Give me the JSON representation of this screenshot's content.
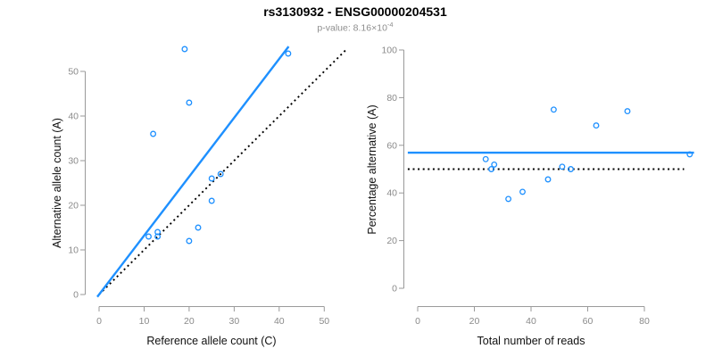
{
  "header": {
    "title": "rs3130932 - ENSG00000204531",
    "subtitle_prefix": "p-value: 8.16×10",
    "subtitle_exponent": "-4"
  },
  "colors": {
    "accent_blue": "#1E90FF",
    "line_black": "#000000",
    "axis_gray": "#9a9a9a",
    "tick_label_gray": "#8a8a8a"
  },
  "chart_data": [
    {
      "type": "scatter",
      "name": "allele-count-scatter",
      "xlabel": "Reference allele count (C)",
      "ylabel": "Alternative allele count (A)",
      "xlim": [
        0,
        50
      ],
      "ylim": [
        0,
        50
      ],
      "xticks": [
        0,
        10,
        20,
        30,
        40,
        50
      ],
      "yticks": [
        0,
        10,
        20,
        30,
        40,
        50
      ],
      "grid": false,
      "points": [
        [
          11,
          13
        ],
        [
          12,
          36
        ],
        [
          13,
          13
        ],
        [
          13,
          14
        ],
        [
          19,
          55
        ],
        [
          20,
          12
        ],
        [
          20,
          43
        ],
        [
          22,
          15
        ],
        [
          25,
          21
        ],
        [
          25,
          26
        ],
        [
          27,
          27
        ],
        [
          42,
          54
        ]
      ],
      "lines": [
        {
          "name": "identity-line",
          "kind": "abline",
          "slope": 1,
          "intercept": 0,
          "style": "dotted",
          "color": "#000000",
          "x_range": [
            0,
            55
          ]
        },
        {
          "name": "fit-line",
          "kind": "abline",
          "slope": 1.32,
          "intercept": 0,
          "style": "solid",
          "color": "#1E90FF",
          "x_range": [
            -0.4,
            42.1
          ]
        }
      ]
    },
    {
      "type": "scatter",
      "name": "percentage-vs-reads-scatter",
      "xlabel": "Total number of reads",
      "ylabel": "Percentage alternative (A)",
      "xlim": [
        0,
        80
      ],
      "ylim": [
        0,
        100
      ],
      "xticks": [
        0,
        20,
        40,
        60,
        80
      ],
      "yticks": [
        0,
        20,
        40,
        60,
        80,
        100
      ],
      "grid": false,
      "points": [
        [
          24,
          54.2
        ],
        [
          26,
          50
        ],
        [
          27,
          51.9
        ],
        [
          32,
          37.5
        ],
        [
          37,
          40.5
        ],
        [
          46,
          45.7
        ],
        [
          48,
          75
        ],
        [
          51,
          51
        ],
        [
          54,
          50
        ],
        [
          63,
          68.3
        ],
        [
          74,
          74.3
        ],
        [
          96,
          56.2
        ]
      ],
      "lines": [
        {
          "name": "null-line",
          "kind": "hline",
          "value": 50,
          "style": "dotted",
          "color": "#000000",
          "x_range": [
            -3.5,
            94
          ]
        },
        {
          "name": "mean-line",
          "kind": "hline",
          "value": 56.9,
          "style": "solid",
          "color": "#1E90FF",
          "x_range": [
            -3.5,
            97.5
          ]
        }
      ]
    }
  ]
}
